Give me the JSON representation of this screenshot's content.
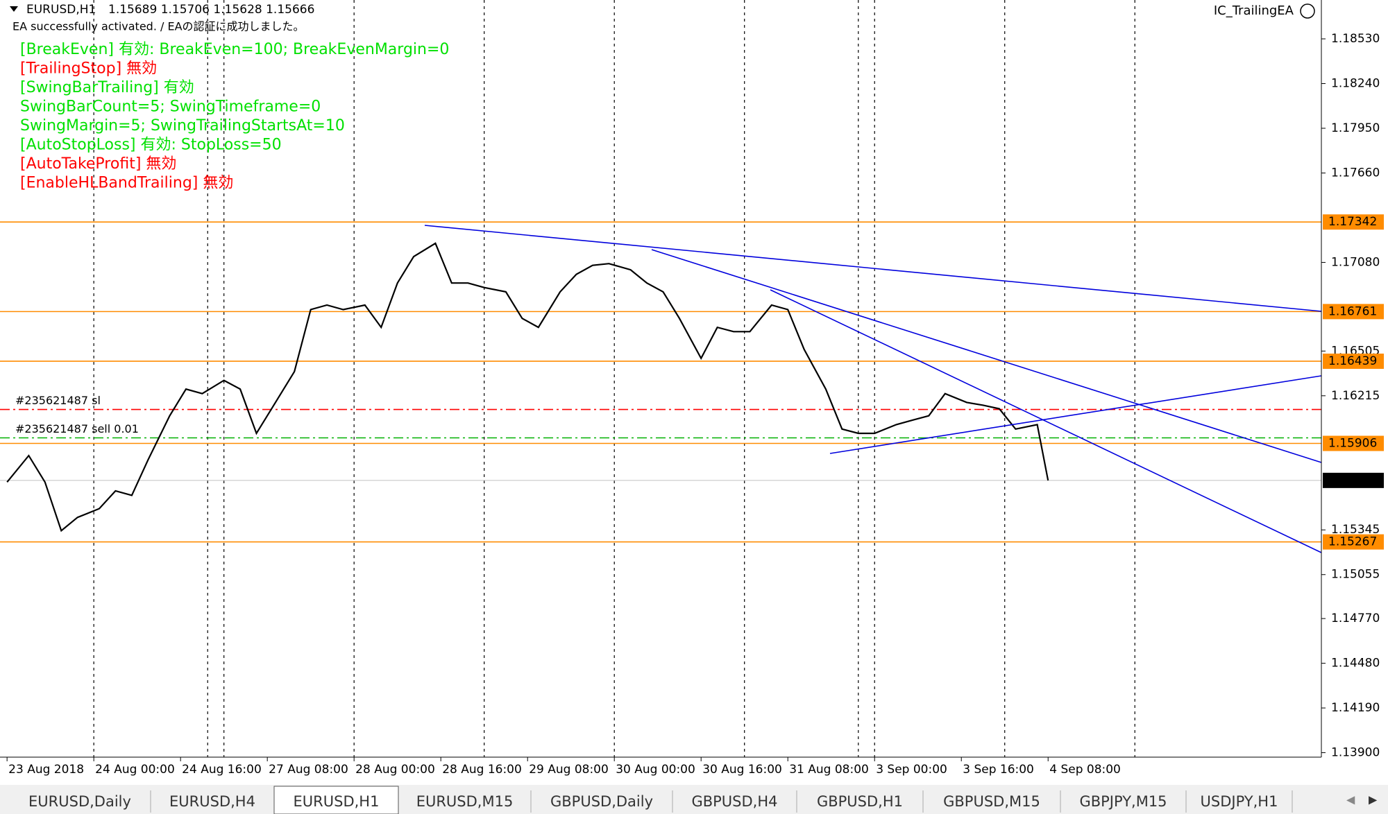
{
  "header": {
    "symbol": "EURUSD,H1",
    "ohlc": "1.15689 1.15706 1.15628 1.15666"
  },
  "ea_status": "EA successfully activated. / EAの認証に成功しました。",
  "indicator_name": "IC_TrailingEA",
  "ea_messages": [
    {
      "text": "[BreakEven] 有効: BreakEven=100; BreakEvenMargin=0",
      "color": "#00e000"
    },
    {
      "text": "[TrailingStop] 無効",
      "color": "#ff0000"
    },
    {
      "text": "[SwingBarTrailing] 有効",
      "color": "#00e000"
    },
    {
      "text": "SwingBarCount=5; SwingTimeframe=0",
      "color": "#00e000"
    },
    {
      "text": "SwingMargin=5; SwingTrailingStartsAt=10",
      "color": "#00e000"
    },
    {
      "text": "[AutoStopLoss] 有効: StopLoss=50",
      "color": "#00e000"
    },
    {
      "text": "[AutoTakeProfit] 無効",
      "color": "#ff0000"
    },
    {
      "text": "[EnableHLBandTrailing] 無効",
      "color": "#ff0000"
    }
  ],
  "tabs": [
    "EURUSD,Daily",
    "EURUSD,H4",
    "EURUSD,H1",
    "EURUSD,M15",
    "GBPUSD,Daily",
    "GBPUSD,H4",
    "GBPUSD,H1",
    "GBPUSD,M15",
    "GBPJPY,M15",
    "USDJPY,H1"
  ],
  "active_tab": 2,
  "chart_data": {
    "type": "line",
    "color": "#000000",
    "x": [
      0,
      4,
      7,
      10,
      13,
      17,
      20,
      23,
      26,
      30,
      33,
      36,
      40,
      43,
      46,
      49,
      53,
      56,
      59,
      62,
      66,
      69,
      72,
      75,
      79,
      82,
      85,
      88,
      92,
      95,
      98,
      102,
      105,
      108,
      111,
      115,
      118,
      121,
      124,
      128,
      131,
      134,
      137,
      141,
      144,
      147,
      151,
      154,
      157,
      160,
      164,
      167,
      170,
      173,
      177,
      180,
      183,
      186,
      190,
      192
    ],
    "values": [
      1.15655,
      1.15827,
      1.15655,
      1.1534,
      1.15426,
      1.15483,
      1.15598,
      1.15569,
      1.15799,
      1.16085,
      1.16258,
      1.16229,
      1.16315,
      1.16258,
      1.15971,
      1.16143,
      1.16372,
      1.16774,
      1.16803,
      1.16774,
      1.16803,
      1.16659,
      1.16946,
      1.17118,
      1.17204,
      1.16946,
      1.16946,
      1.16917,
      1.16889,
      1.16717,
      1.16659,
      1.16889,
      1.17003,
      1.17061,
      1.17072,
      1.17032,
      1.16946,
      1.16889,
      1.16717,
      1.16458,
      1.16659,
      1.16631,
      1.16631,
      1.16803,
      1.16774,
      1.16516,
      1.16258,
      1.15999,
      1.15971,
      1.15971,
      1.16028,
      1.16057,
      1.16085,
      1.16229,
      1.16172,
      1.16154,
      1.16131,
      1.15999,
      1.16028,
      1.15666
    ],
    "xlim": [
      -1.3,
      242.4
    ],
    "ylim": [
      1.13871,
      1.18782
    ],
    "xticks": [
      {
        "value": 0,
        "label": "23 Aug 2018"
      },
      {
        "value": 16,
        "label": "24 Aug 00:00"
      },
      {
        "value": 32,
        "label": "24 Aug 16:00"
      },
      {
        "value": 48,
        "label": "27 Aug 08:00"
      },
      {
        "value": 64,
        "label": "28 Aug 00:00"
      },
      {
        "value": 80,
        "label": "28 Aug 16:00"
      },
      {
        "value": 96,
        "label": "29 Aug 08:00"
      },
      {
        "value": 112,
        "label": "30 Aug 00:00"
      },
      {
        "value": 128,
        "label": "30 Aug 16:00"
      },
      {
        "value": 144,
        "label": "31 Aug 08:00"
      },
      {
        "value": 160,
        "label": "3 Sep 00:00"
      },
      {
        "value": 176,
        "label": "3 Sep 16:00"
      },
      {
        "value": 192,
        "label": "4 Sep 08:00"
      }
    ],
    "yticks": [
      {
        "value": 1.1853,
        "label": "1.18530"
      },
      {
        "value": 1.1824,
        "label": "1.18240"
      },
      {
        "value": 1.1795,
        "label": "1.17950"
      },
      {
        "value": 1.1766,
        "label": "1.17660"
      },
      {
        "value": 1.1708,
        "label": "1.17080"
      },
      1.16505,
      1.16215,
      1.15345,
      1.15055,
      {
        "value": 1.1477,
        "label": "1.14770"
      },
      {
        "value": 1.1448,
        "label": "1.14480"
      },
      {
        "value": 1.1419,
        "label": "1.14190"
      },
      {
        "value": 1.139,
        "label": "1.13900"
      }
    ],
    "grid": false,
    "levels": [
      {
        "value": 1.17342,
        "color": "#ff8c00"
      },
      {
        "value": 1.16761,
        "color": "#ff8c00"
      },
      {
        "value": 1.16439,
        "color": "#ff8c00"
      },
      {
        "value": 1.15906,
        "color": "#ff8c00"
      },
      {
        "value": 1.15267,
        "color": "#ff8c00"
      }
    ],
    "current_price": {
      "value": 1.15666,
      "color": "#000000"
    },
    "orders": [
      {
        "label": "#235621487 sl",
        "value": 1.16126,
        "color": "#ff0000"
      },
      {
        "label": "#235621487 sell 0.01",
        "value": 1.15942,
        "color": "#00b000"
      }
    ]
  }
}
